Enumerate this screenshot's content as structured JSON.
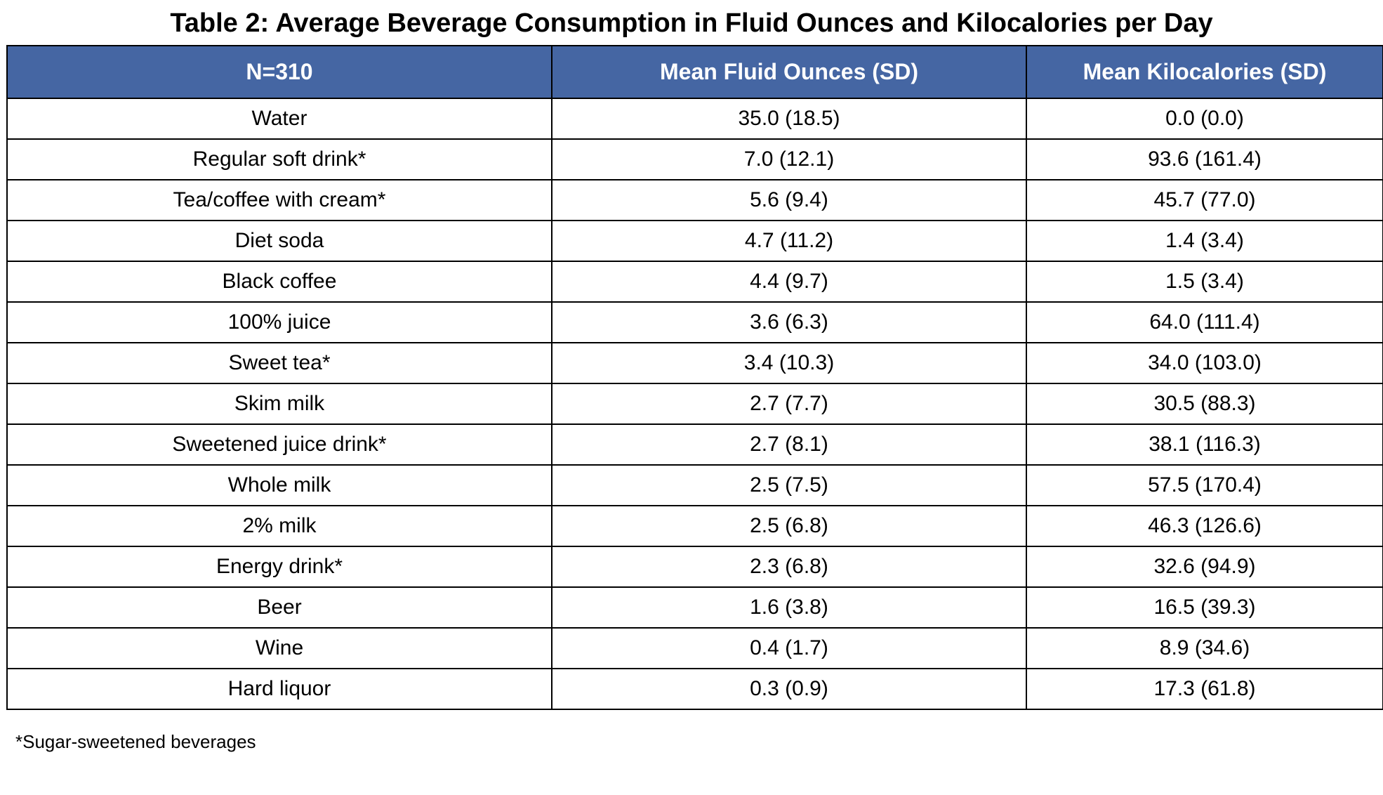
{
  "title": "Table 2: Average Beverage Consumption in Fluid Ounces and Kilocalories per Day",
  "table": {
    "headers": [
      "N=310",
      "Mean Fluid Ounces (SD)",
      "Mean Kilocalories (SD)"
    ],
    "rows": [
      [
        "Water",
        "35.0 (18.5)",
        "0.0 (0.0)"
      ],
      [
        "Regular soft drink*",
        "7.0 (12.1)",
        "93.6 (161.4)"
      ],
      [
        "Tea/coffee with cream*",
        "5.6 (9.4)",
        "45.7 (77.0)"
      ],
      [
        "Diet soda",
        "4.7 (11.2)",
        "1.4 (3.4)"
      ],
      [
        "Black coffee",
        "4.4 (9.7)",
        "1.5 (3.4)"
      ],
      [
        "100% juice",
        "3.6 (6.3)",
        "64.0 (111.4)"
      ],
      [
        "Sweet tea*",
        "3.4 (10.3)",
        "34.0 (103.0)"
      ],
      [
        "Skim milk",
        "2.7 (7.7)",
        "30.5 (88.3)"
      ],
      [
        "Sweetened juice drink*",
        "2.7 (8.1)",
        "38.1 (116.3)"
      ],
      [
        "Whole milk",
        "2.5 (7.5)",
        "57.5 (170.4)"
      ],
      [
        "2% milk",
        "2.5 (6.8)",
        "46.3 (126.6)"
      ],
      [
        "Energy drink*",
        "2.3 (6.8)",
        "32.6 (94.9)"
      ],
      [
        "Beer",
        "1.6 (3.8)",
        "16.5 (39.3)"
      ],
      [
        "Wine",
        "0.4 (1.7)",
        "8.9 (34.6)"
      ],
      [
        "Hard liquor",
        "0.3 (0.9)",
        "17.3 (61.8)"
      ]
    ]
  },
  "footnote": "*Sugar-sweetened beverages",
  "colors": {
    "header_background": "#4566a3",
    "header_text": "#ffffff",
    "border": "#000000"
  }
}
